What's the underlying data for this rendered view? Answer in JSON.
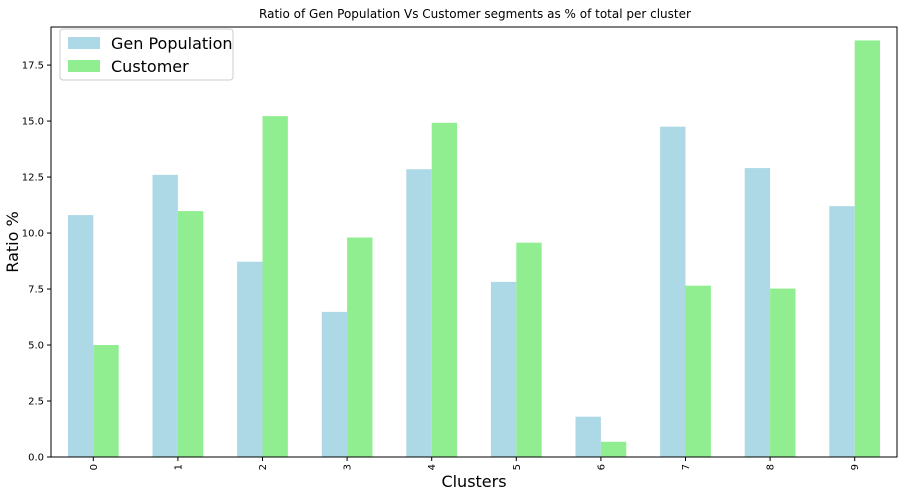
{
  "chart_data": {
    "type": "bar",
    "title": "Ratio of Gen Population Vs Customer segments as % of total per cluster",
    "xlabel": "Clusters",
    "ylabel": "Ratio %",
    "categories": [
      "0",
      "1",
      "2",
      "3",
      "4",
      "5",
      "6",
      "7",
      "8",
      "9"
    ],
    "series": [
      {
        "name": "Gen Population",
        "color": "#add8e6",
        "values": [
          10.8,
          12.6,
          8.72,
          6.48,
          12.85,
          7.82,
          1.8,
          14.75,
          12.9,
          11.2
        ]
      },
      {
        "name": "Customer",
        "color": "#90ee90",
        "values": [
          5.0,
          10.98,
          15.22,
          9.8,
          14.92,
          9.57,
          0.68,
          7.65,
          7.52,
          18.6
        ]
      }
    ],
    "ylim": [
      0,
      19.2
    ],
    "yticks": [
      0.0,
      2.5,
      5.0,
      7.5,
      10.0,
      12.5,
      15.0,
      17.5
    ],
    "ytick_labels": [
      "0.0",
      "2.5",
      "5.0",
      "7.5",
      "10.0",
      "12.5",
      "15.0",
      "17.5"
    ],
    "xtick_rotation": "vertical",
    "grid": false,
    "legend_position": "top-left"
  }
}
